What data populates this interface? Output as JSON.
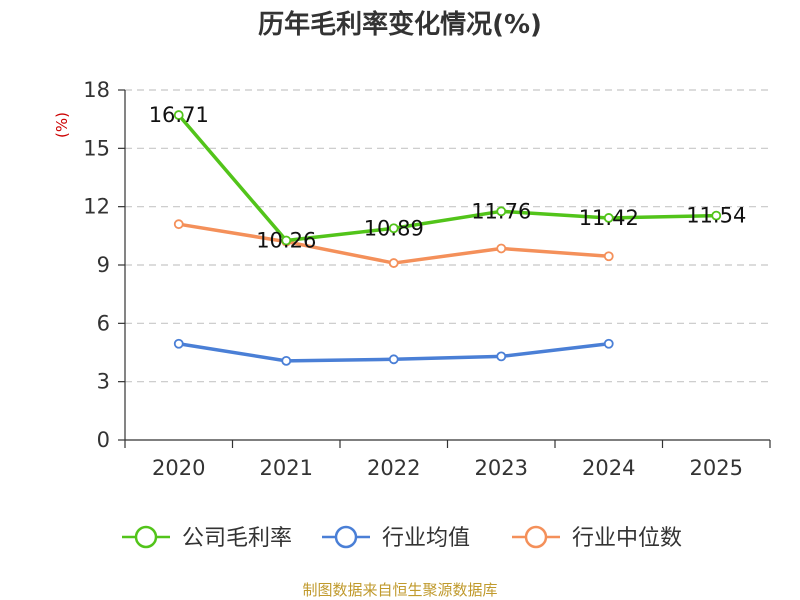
{
  "chart_data": {
    "type": "line",
    "title": "历年毛利率变化情况(%)",
    "ylabel": "(%)",
    "ylim": [
      0,
      18
    ],
    "yticks": [
      0,
      3,
      6,
      9,
      12,
      15,
      18
    ],
    "grid": true,
    "legend_position": "bottom",
    "categories": [
      "2020",
      "2021",
      "2022",
      "2023",
      "2024",
      "2025"
    ],
    "series": [
      {
        "name": "公司毛利率",
        "color": "#52c41a",
        "values": [
          16.71,
          10.26,
          10.89,
          11.76,
          11.42,
          11.54
        ],
        "labels": [
          "16.71",
          "10.26",
          "10.89",
          "11.76",
          "11.42",
          "11.54"
        ]
      },
      {
        "name": "行业均值",
        "color": "#4a7fd6",
        "values": [
          4.95,
          4.07,
          4.15,
          4.3,
          4.95,
          null
        ]
      },
      {
        "name": "行业中位数",
        "color": "#f4905a",
        "values": [
          11.1,
          10.2,
          9.1,
          9.85,
          9.45,
          null
        ]
      }
    ],
    "source": "制图数据来自恒生聚源数据库"
  }
}
